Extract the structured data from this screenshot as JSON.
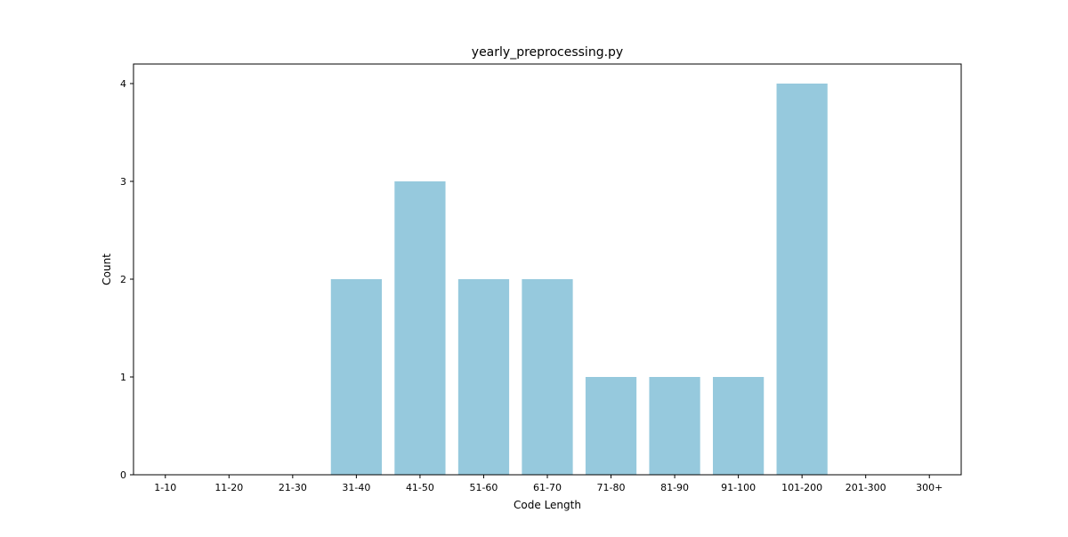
{
  "chart_data": {
    "type": "bar",
    "title": "yearly_preprocessing.py",
    "xlabel": "Code Length",
    "ylabel": "Count",
    "categories": [
      "1-10",
      "11-20",
      "21-30",
      "31-40",
      "41-50",
      "51-60",
      "61-70",
      "71-80",
      "81-90",
      "91-100",
      "101-200",
      "201-300",
      "300+"
    ],
    "values": [
      0,
      0,
      0,
      2,
      3,
      2,
      2,
      1,
      1,
      1,
      4,
      0,
      0
    ],
    "ylim": [
      0,
      4.2
    ],
    "yticks": [
      "0",
      "1",
      "2",
      "3",
      "4"
    ],
    "grid": false,
    "bar_color": "#96c9dd",
    "axis_color": "#000000"
  }
}
